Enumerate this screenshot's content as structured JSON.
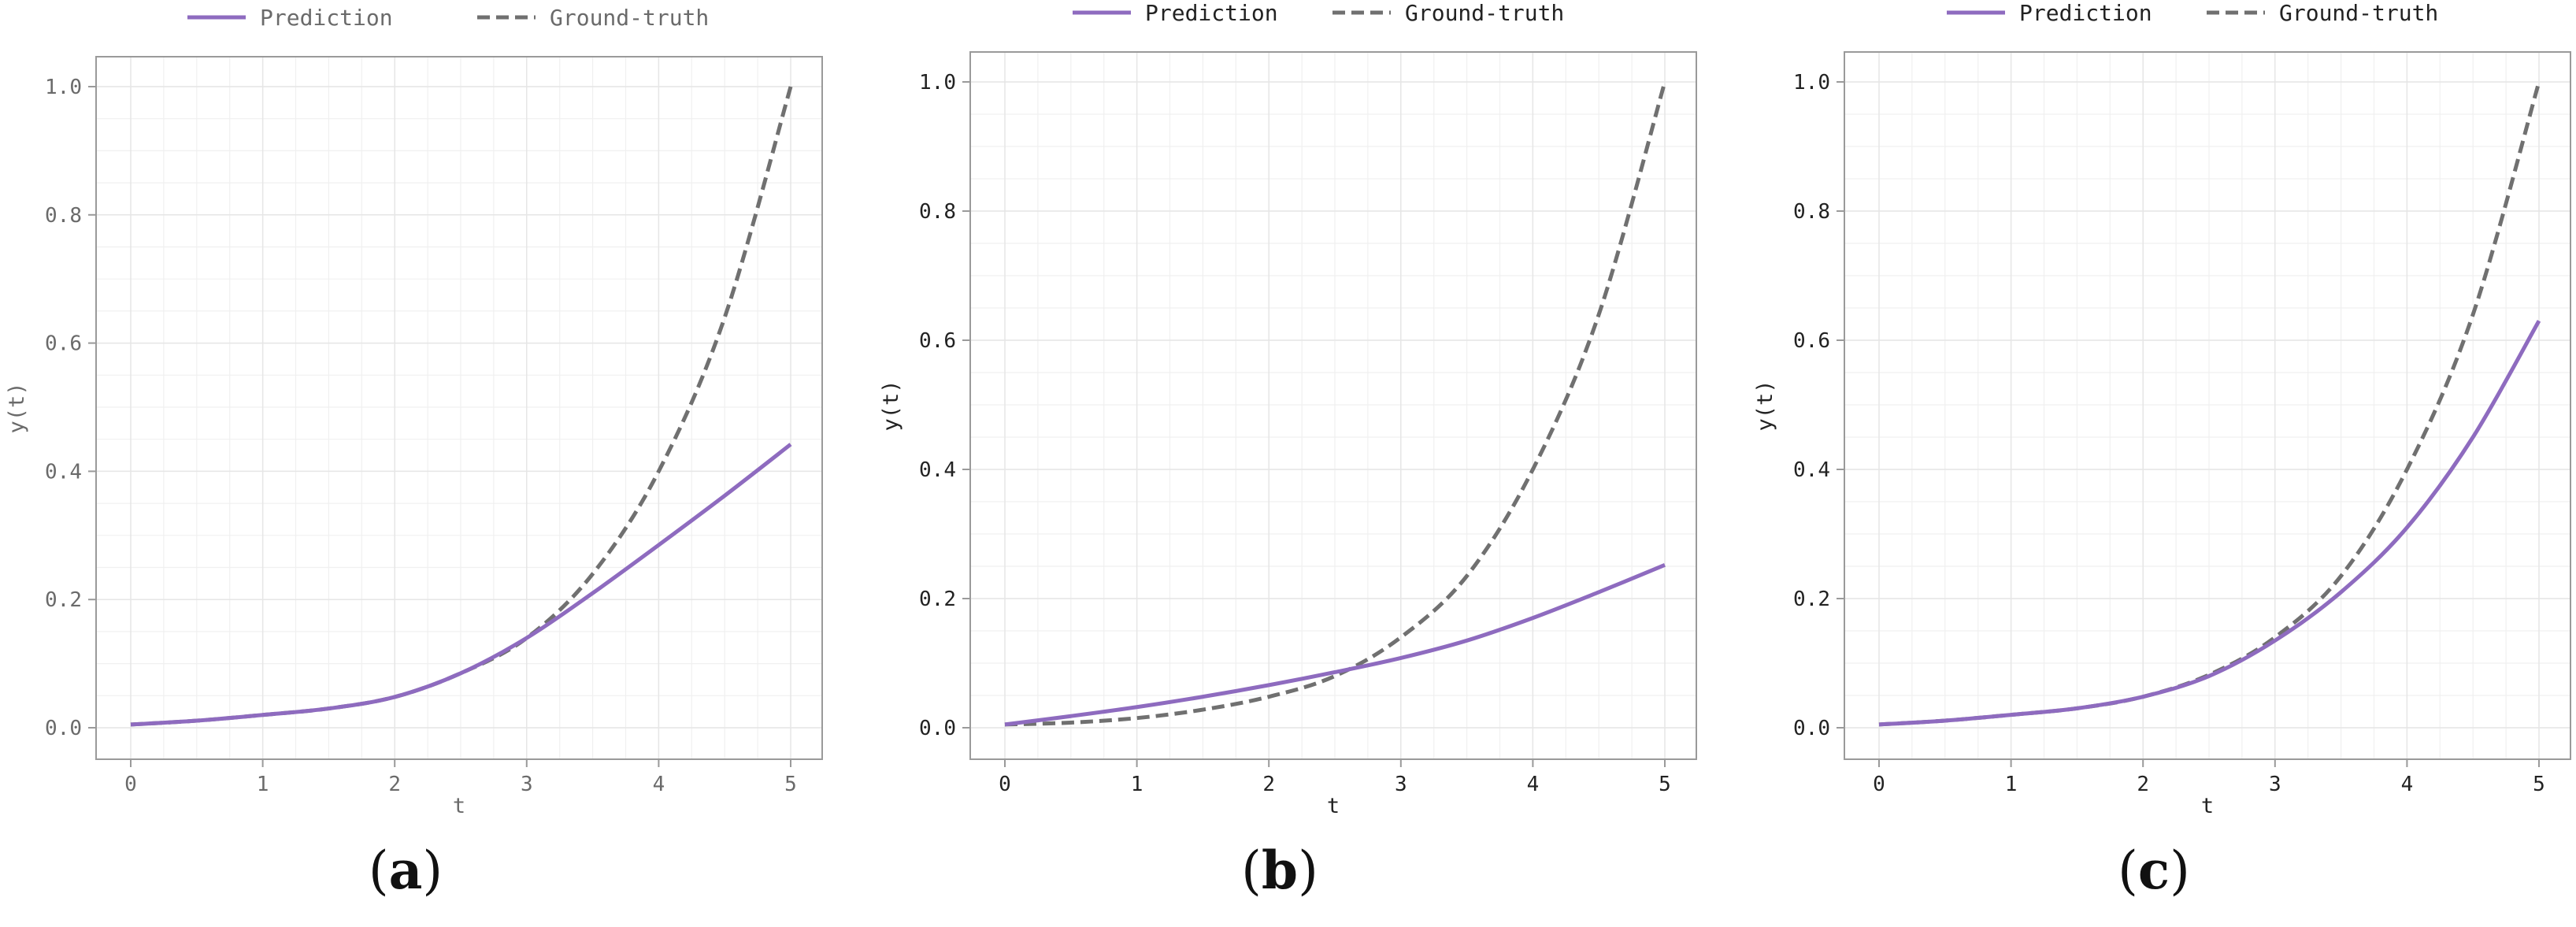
{
  "chart_data": [
    {
      "type": "line",
      "panel_label": "a",
      "xlabel": "t",
      "ylabel": "y(t)",
      "xlim": [
        0,
        5
      ],
      "ylim": [
        0,
        1
      ],
      "xticks": [
        "0",
        "1",
        "2",
        "3",
        "4",
        "5"
      ],
      "yticks": [
        "0.0",
        "0.2",
        "0.4",
        "0.6",
        "0.8",
        "1.0"
      ],
      "grid": true,
      "legend_position": "top",
      "x": [
        0,
        0.5,
        1,
        1.5,
        2,
        2.5,
        3,
        3.5,
        4,
        4.5,
        5
      ],
      "series": [
        {
          "name": "Prediction",
          "style": "solid",
          "color": "#8e6bbf",
          "values": [
            0.005,
            0.011,
            0.02,
            0.03,
            0.048,
            0.085,
            0.14,
            0.21,
            0.285,
            0.362,
            0.442
          ]
        },
        {
          "name": "Ground-truth",
          "style": "dashed",
          "color": "#707070",
          "values": [
            0.005,
            0.011,
            0.02,
            0.03,
            0.048,
            0.085,
            0.14,
            0.24,
            0.4,
            0.64,
            1.0
          ]
        }
      ]
    },
    {
      "type": "line",
      "panel_label": "b",
      "xlabel": "t",
      "ylabel": "y(t)",
      "xlim": [
        0,
        5
      ],
      "ylim": [
        0,
        1
      ],
      "xticks": [
        "0",
        "1",
        "2",
        "3",
        "4",
        "5"
      ],
      "yticks": [
        "0.0",
        "0.2",
        "0.4",
        "0.6",
        "0.8",
        "1.0"
      ],
      "grid": true,
      "legend_position": "top",
      "x": [
        0,
        0.5,
        1,
        1.5,
        2,
        2.5,
        3,
        3.5,
        4,
        4.5,
        5
      ],
      "series": [
        {
          "name": "Prediction",
          "style": "solid",
          "color": "#8e6bbf",
          "values": [
            0.005,
            0.018,
            0.032,
            0.048,
            0.066,
            0.086,
            0.108,
            0.135,
            0.17,
            0.21,
            0.252
          ]
        },
        {
          "name": "Ground-truth",
          "style": "dashed",
          "color": "#707070",
          "values": [
            0.005,
            0.008,
            0.015,
            0.028,
            0.048,
            0.08,
            0.14,
            0.235,
            0.4,
            0.64,
            1.0
          ]
        }
      ]
    },
    {
      "type": "line",
      "panel_label": "c",
      "xlabel": "t",
      "ylabel": "y(t)",
      "xlim": [
        0,
        5
      ],
      "ylim": [
        0,
        1
      ],
      "xticks": [
        "0",
        "1",
        "2",
        "3",
        "4",
        "5"
      ],
      "yticks": [
        "0.0",
        "0.2",
        "0.4",
        "0.6",
        "0.8",
        "1.0"
      ],
      "grid": true,
      "legend_position": "top",
      "x": [
        0,
        0.5,
        1,
        1.5,
        2,
        2.5,
        3,
        3.5,
        4,
        4.5,
        5
      ],
      "series": [
        {
          "name": "Prediction",
          "style": "solid",
          "color": "#8e6bbf",
          "values": [
            0.005,
            0.011,
            0.02,
            0.03,
            0.048,
            0.08,
            0.135,
            0.21,
            0.31,
            0.45,
            0.63
          ]
        },
        {
          "name": "Ground-truth",
          "style": "dashed",
          "color": "#707070",
          "values": [
            0.005,
            0.011,
            0.02,
            0.03,
            0.048,
            0.082,
            0.14,
            0.235,
            0.4,
            0.64,
            1.0
          ]
        }
      ]
    }
  ]
}
